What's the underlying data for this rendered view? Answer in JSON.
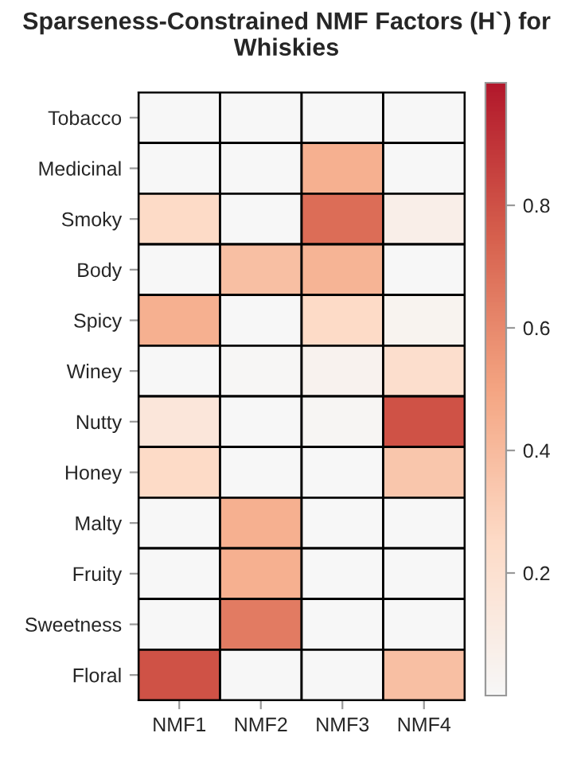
{
  "chart_data": {
    "type": "heatmap",
    "title": "Sparseness-Constrained NMF Factors (H`) for Whiskies",
    "categories": [
      "NMF1",
      "NMF2",
      "NMF3",
      "NMF4"
    ],
    "y_categories": [
      "Tobacco",
      "Medicinal",
      "Smoky",
      "Body",
      "Spicy",
      "Winey",
      "Nutty",
      "Honey",
      "Malty",
      "Fruity",
      "Sweetness",
      "Floral"
    ],
    "cells": [
      [
        0,
        0,
        0,
        0
      ],
      [
        0,
        0,
        0.45,
        0
      ],
      [
        0.25,
        0,
        0.7,
        0.08
      ],
      [
        0,
        0.38,
        0.43,
        0
      ],
      [
        0.45,
        0,
        0.25,
        0.04
      ],
      [
        0,
        0.01,
        0.05,
        0.22
      ],
      [
        0.15,
        0,
        0.02,
        0.8
      ],
      [
        0.25,
        0,
        0,
        0.35
      ],
      [
        0,
        0.45,
        0,
        0
      ],
      [
        0,
        0.45,
        0,
        0
      ],
      [
        0,
        0.65,
        0,
        0
      ],
      [
        0.8,
        0,
        0,
        0.38
      ]
    ],
    "clim": [
      0,
      1
    ],
    "cticks": [
      {
        "value": 0.2,
        "label": "0.2"
      },
      {
        "value": 0.4,
        "label": "0.4"
      },
      {
        "value": 0.6,
        "label": "0.6"
      },
      {
        "value": 0.8,
        "label": "0.8"
      }
    ]
  }
}
